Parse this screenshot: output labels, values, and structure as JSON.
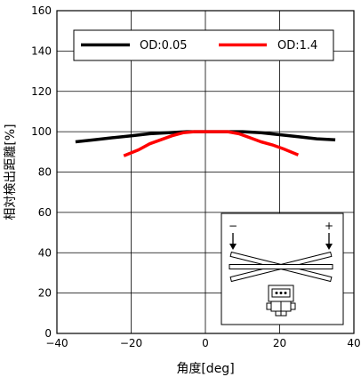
{
  "chart_data": {
    "type": "line",
    "xlabel": "角度[deg]",
    "ylabel": "相対検出距離[%]",
    "xlim": [
      -40,
      40
    ],
    "ylim": [
      0,
      160
    ],
    "xticks": [
      -40,
      -20,
      0,
      20,
      40
    ],
    "yticks": [
      0,
      20,
      40,
      60,
      80,
      100,
      120,
      140,
      160
    ],
    "grid": true,
    "legend_position": "top",
    "series": [
      {
        "name": "OD:0.05",
        "color": "#000000",
        "x": [
          -35,
          -30,
          -25,
          -20,
          -15,
          -10,
          -5,
          0,
          5,
          10,
          15,
          20,
          25,
          30,
          35
        ],
        "y": [
          95,
          96,
          97,
          98,
          99,
          99.5,
          100,
          100,
          100,
          100,
          99.5,
          98.5,
          97.5,
          96.5,
          96
        ]
      },
      {
        "name": "OD:1.4",
        "color": "#ff0000",
        "x": [
          -22,
          -18,
          -15,
          -12,
          -9,
          -6,
          -3,
          0,
          3,
          6,
          9,
          12,
          15,
          18,
          21,
          25
        ],
        "y": [
          88,
          91,
          94,
          96,
          98,
          99.5,
          100,
          100,
          100,
          100,
          99,
          97,
          95,
          93.5,
          91.5,
          88.5
        ]
      }
    ],
    "inset": {
      "minus_label": "−",
      "plus_label": "+"
    }
  }
}
